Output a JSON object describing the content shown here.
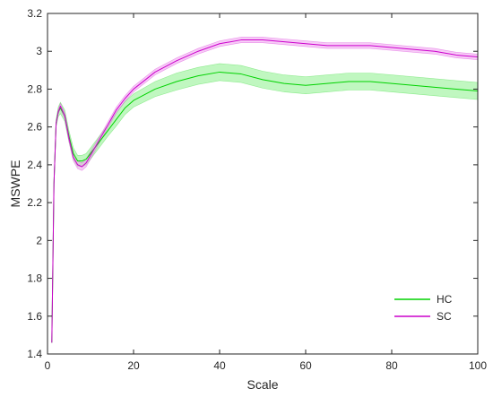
{
  "chart_data": {
    "type": "line",
    "title": "",
    "xlabel": "Scale",
    "ylabel": "MSWPE",
    "xlim": [
      0,
      100
    ],
    "ylim": [
      1.4,
      3.2
    ],
    "xticks": [
      0,
      20,
      40,
      60,
      80,
      100
    ],
    "yticks": [
      1.4,
      1.6,
      1.8,
      2.0,
      2.2,
      2.4,
      2.6,
      2.8,
      3.0,
      3.2
    ],
    "ytick_labels": [
      "1.4",
      "1.6",
      "1.8",
      "2",
      "2.2",
      "2.4",
      "2.6",
      "2.8",
      "3",
      "3.2"
    ],
    "grid": false,
    "legend_position": "bottom-right",
    "series": [
      {
        "name": "HC",
        "color": "#00d200",
        "band_color": "#8cf08c",
        "x": [
          1,
          1.5,
          2,
          2.5,
          3,
          4,
          5,
          6,
          7,
          8,
          9,
          10,
          12,
          14,
          16,
          18,
          20,
          25,
          30,
          35,
          40,
          45,
          50,
          55,
          60,
          65,
          70,
          75,
          80,
          85,
          90,
          95,
          100
        ],
        "y": [
          1.46,
          2.3,
          2.62,
          2.68,
          2.7,
          2.66,
          2.55,
          2.46,
          2.42,
          2.42,
          2.43,
          2.46,
          2.52,
          2.58,
          2.64,
          2.7,
          2.74,
          2.8,
          2.84,
          2.87,
          2.89,
          2.88,
          2.85,
          2.83,
          2.82,
          2.83,
          2.84,
          2.84,
          2.83,
          2.82,
          2.81,
          2.8,
          2.79
        ],
        "err": [
          0.0,
          0.01,
          0.02,
          0.025,
          0.03,
          0.03,
          0.03,
          0.03,
          0.03,
          0.03,
          0.03,
          0.03,
          0.03,
          0.03,
          0.035,
          0.035,
          0.035,
          0.04,
          0.045,
          0.045,
          0.045,
          0.045,
          0.045,
          0.045,
          0.045,
          0.045,
          0.045,
          0.045,
          0.045,
          0.045,
          0.045,
          0.045,
          0.045
        ]
      },
      {
        "name": "SC",
        "color": "#cc00cc",
        "band_color": "#f0a0f0",
        "x": [
          1,
          1.5,
          2,
          2.5,
          3,
          4,
          5,
          6,
          7,
          8,
          9,
          10,
          12,
          14,
          16,
          18,
          20,
          25,
          30,
          35,
          40,
          45,
          50,
          55,
          60,
          65,
          70,
          75,
          80,
          85,
          90,
          95,
          100
        ],
        "y": [
          1.46,
          2.3,
          2.62,
          2.68,
          2.71,
          2.66,
          2.54,
          2.44,
          2.4,
          2.39,
          2.41,
          2.45,
          2.53,
          2.61,
          2.69,
          2.75,
          2.8,
          2.89,
          2.95,
          3.0,
          3.04,
          3.06,
          3.06,
          3.05,
          3.04,
          3.03,
          3.03,
          3.03,
          3.02,
          3.01,
          3.0,
          2.98,
          2.97
        ],
        "err": [
          0.0,
          0.005,
          0.01,
          0.01,
          0.015,
          0.015,
          0.02,
          0.02,
          0.02,
          0.02,
          0.02,
          0.02,
          0.015,
          0.015,
          0.015,
          0.015,
          0.015,
          0.015,
          0.015,
          0.015,
          0.015,
          0.015,
          0.015,
          0.015,
          0.015,
          0.015,
          0.015,
          0.015,
          0.015,
          0.015,
          0.015,
          0.015,
          0.015
        ]
      }
    ]
  }
}
